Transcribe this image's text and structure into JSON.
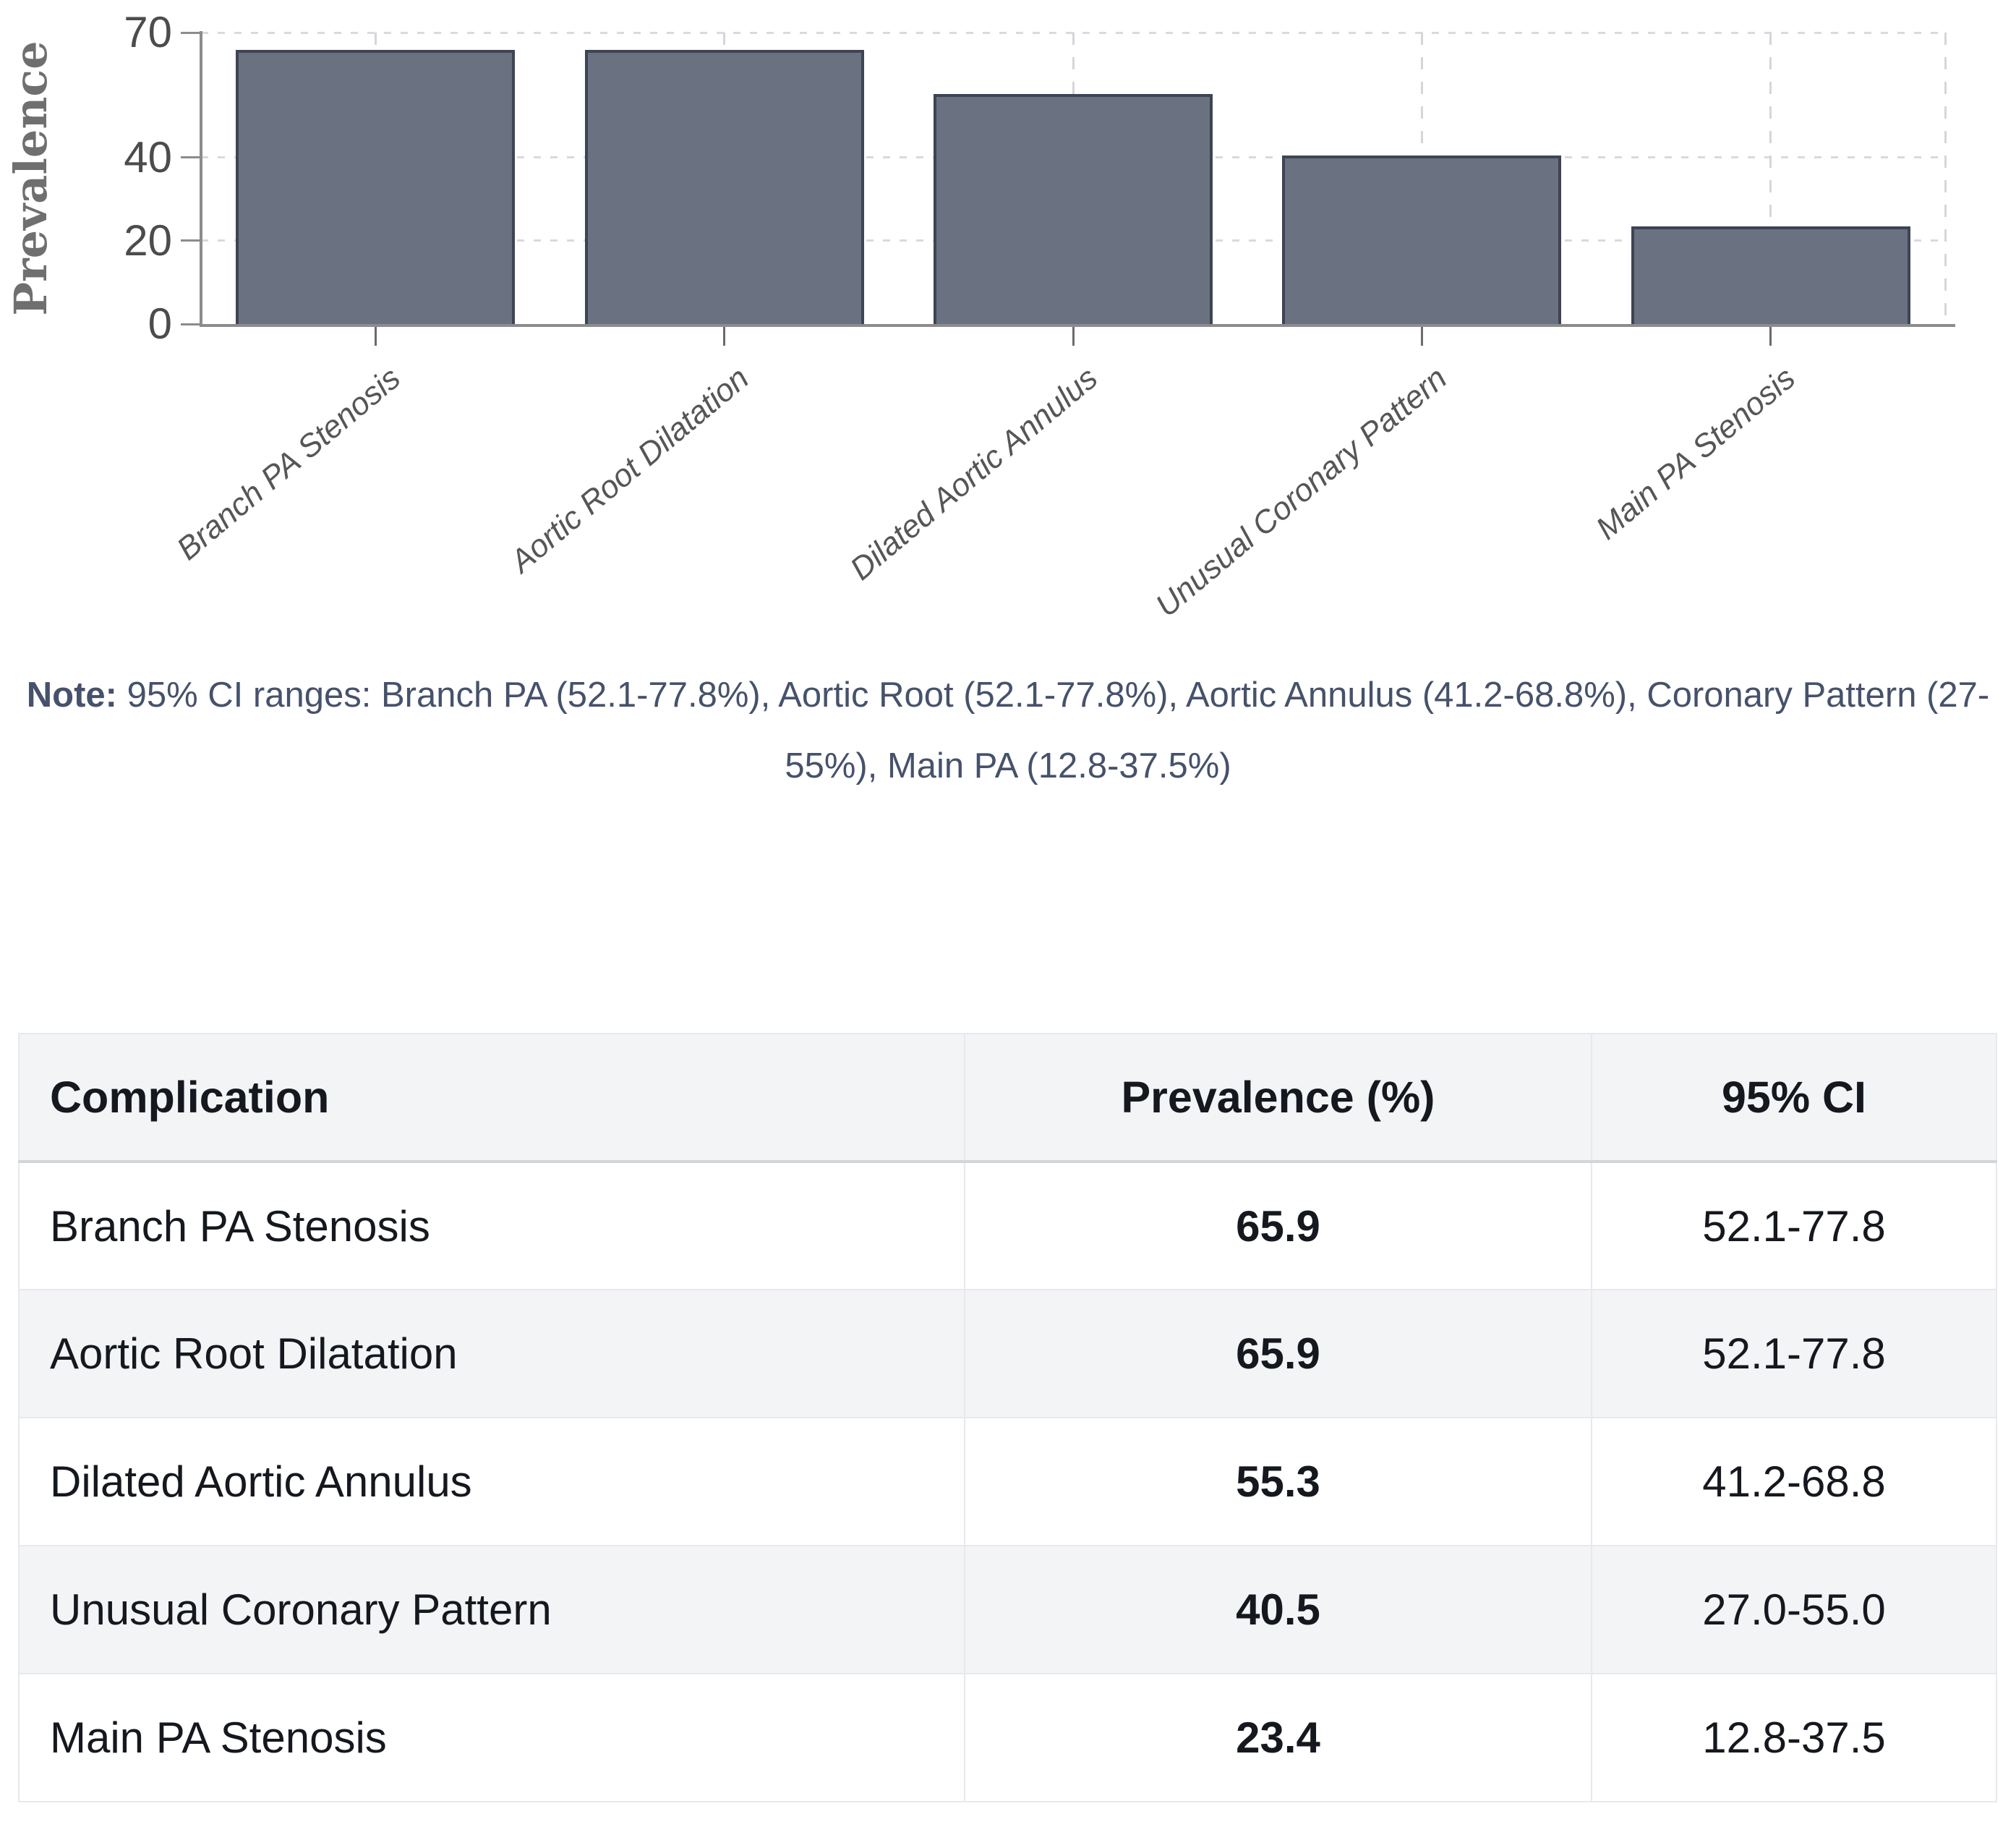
{
  "chart_data": {
    "type": "bar",
    "title": "",
    "ylabel": "Prevalence",
    "xlabel": "",
    "categories": [
      "Branch PA Stenosis",
      "Aortic Root Dilatation",
      "Dilated Aortic Annulus",
      "Unusual Coronary Pattern",
      "Main PA Stenosis"
    ],
    "values": [
      65.9,
      65.9,
      55.3,
      40.5,
      23.4
    ],
    "ylim": [
      0,
      70
    ],
    "yticks": [
      0,
      20,
      40,
      70
    ],
    "grid": true,
    "legend_position": "none",
    "bar_color": "#6a7180",
    "bar_border_color": "#3c4455"
  },
  "note": {
    "label": "Note:",
    "text": " 95% CI ranges: Branch PA (52.1-77.8%), Aortic Root (52.1-77.8%), Aortic Annulus (41.2-68.8%), Coronary Pattern (27-55%), Main PA (12.8-37.5%)"
  },
  "table": {
    "headers": [
      "Complication",
      "Prevalence (%)",
      "95% CI"
    ],
    "rows": [
      {
        "complication": "Branch PA Stenosis",
        "prevalence": "65.9",
        "ci": "52.1-77.8"
      },
      {
        "complication": "Aortic Root Dilatation",
        "prevalence": "65.9",
        "ci": "52.1-77.8"
      },
      {
        "complication": "Dilated Aortic Annulus",
        "prevalence": "55.3",
        "ci": "41.2-68.8"
      },
      {
        "complication": "Unusual Coronary Pattern",
        "prevalence": "40.5",
        "ci": "27.0-55.0"
      },
      {
        "complication": "Main PA Stenosis",
        "prevalence": "23.4",
        "ci": "12.8-37.5"
      }
    ]
  }
}
